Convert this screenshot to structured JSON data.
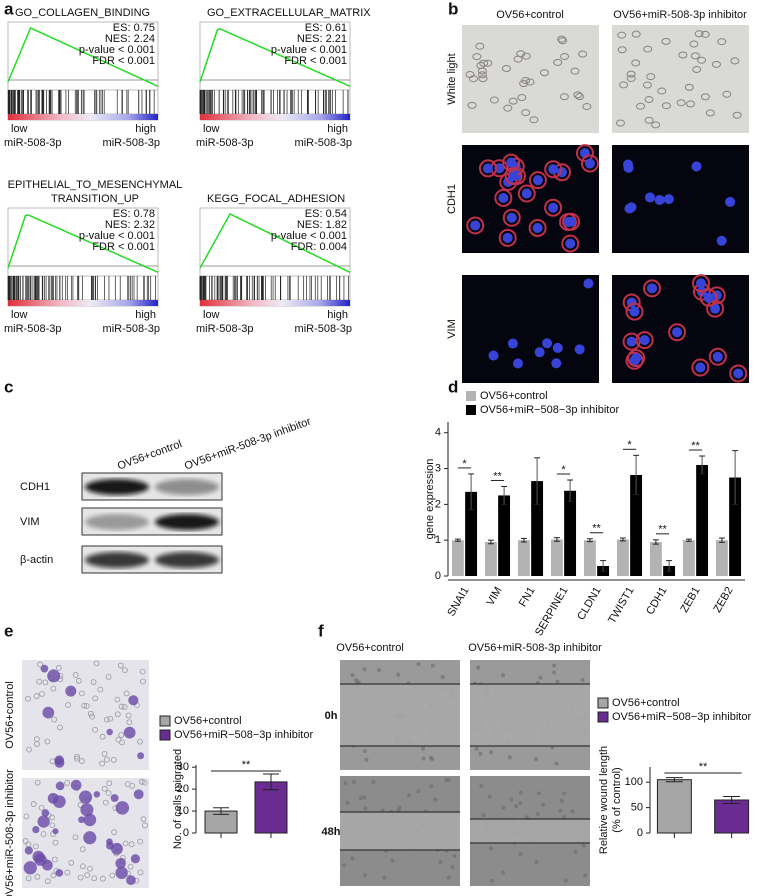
{
  "panels": {
    "a": {
      "label": "a",
      "plots": [
        {
          "title": [
            "GO_COLLAGEN_BINDING"
          ],
          "stats": [
            "ES: 0.75",
            "NES: 2.24",
            "p-value < 0.001",
            "FDR < 0.001"
          ],
          "low": "low",
          "high": "high",
          "group_left": "miR-508-3p",
          "group_right": "miR-508-3p"
        },
        {
          "title": [
            "GO_EXTRACELLULAR_MATRIX"
          ],
          "stats": [
            "ES: 0.61",
            "NES: 2.21",
            "p-value < 0.001",
            "FDR < 0.001"
          ],
          "low": "low",
          "high": "high",
          "group_left": "miR-508-3p",
          "group_right": "miR-508-3p"
        },
        {
          "title": [
            "EPITHELIAL_TO_MESENCHYMAL",
            "TRANSITION_UP"
          ],
          "stats": [
            "ES: 0.78",
            "NES: 2.32",
            "p-value < 0.001",
            "FDR < 0.001"
          ],
          "low": "low",
          "high": "high",
          "group_left": "miR-508-3p",
          "group_right": "miR-508-3p"
        },
        {
          "title": [
            "KEGG_FOCAL_ADHESION"
          ],
          "stats": [
            "ES: 0.54",
            "NES: 1.82",
            "p-value < 0.001",
            "FDR: 0.004"
          ],
          "low": "low",
          "high": "high",
          "group_left": "miR-508-3p",
          "group_right": "miR-508-3p"
        }
      ]
    },
    "b": {
      "label": "b",
      "columns": [
        "OV56+control",
        "OV56+miR-508-3p inhibitor"
      ],
      "rows": [
        "White light",
        "CDH1",
        "VIM"
      ]
    },
    "c": {
      "label": "c",
      "columns": [
        "OV56+control",
        "OV56+miR-508-3p inhibitor"
      ],
      "rows": [
        "CDH1",
        "VIM",
        "β-actin"
      ]
    },
    "d": {
      "label": "d"
    },
    "e": {
      "label": "e",
      "rows": [
        "OV56+control",
        "OV56+miR-508-3p inhibitor"
      ]
    },
    "f": {
      "label": "f",
      "columns": [
        "OV56+control",
        "OV56+miR-508-3p inhibitor"
      ],
      "rows": [
        "0h",
        "48h"
      ]
    }
  },
  "chart_data": [
    {
      "type": "bar",
      "ylabel": "gene expression",
      "categories": [
        "SNAI1",
        "VIM",
        "FN1",
        "SERPINE1",
        "CLDN1",
        "TWIST1",
        "CDH1",
        "ZEB1",
        "ZEB2"
      ],
      "series": [
        {
          "name": "OV56+control",
          "color": "#b3b3b3",
          "values": [
            1,
            0.95,
            1,
            1.02,
            1,
            1.02,
            0.95,
            1,
            1
          ],
          "errors": [
            0.03,
            0.05,
            0.05,
            0.05,
            0.04,
            0.04,
            0.06,
            0.03,
            0.06
          ]
        },
        {
          "name": "OV56+miR−508−3p inhibitor",
          "color": "#000000",
          "values": [
            2.35,
            2.25,
            2.65,
            2.38,
            0.28,
            2.82,
            0.28,
            3.1,
            2.75
          ],
          "errors": [
            0.5,
            0.25,
            0.65,
            0.3,
            0.15,
            0.55,
            0.15,
            0.25,
            0.75
          ]
        }
      ],
      "significance": [
        "*",
        "**",
        null,
        "*",
        "**",
        "*",
        "**",
        "**",
        null
      ],
      "ylim": [
        0,
        4.3
      ],
      "yticks": [
        0,
        1,
        2,
        3,
        4
      ]
    },
    {
      "type": "bar",
      "ylabel": [
        "No. of cells migrated"
      ],
      "categories": [
        null
      ],
      "series": [
        {
          "name": "OV56+control",
          "color": "#a6a6a6",
          "values": [
            10
          ],
          "errors": [
            1.5
          ]
        },
        {
          "name": "OV56+miR−508−3p inhibitor",
          "color": "#6a2c91",
          "values": [
            23.3
          ],
          "errors": [
            3.6
          ]
        }
      ],
      "significance": "**",
      "ylim": [
        0,
        31
      ],
      "yticks": [
        0,
        10,
        20,
        30
      ]
    },
    {
      "type": "bar",
      "ylabel": [
        "Relative wound length",
        "(% of control)"
      ],
      "categories": [
        null
      ],
      "series": [
        {
          "name": "OV56+control",
          "color": "#a6a6a6",
          "values": [
            105
          ],
          "errors": [
            4
          ]
        },
        {
          "name": "OV56+miR−508−3p inhibitor",
          "color": "#6a2c91",
          "values": [
            65
          ],
          "errors": [
            7
          ]
        }
      ],
      "significance": "**",
      "ylim": [
        0,
        130
      ],
      "yticks": [
        0,
        50,
        100
      ]
    }
  ]
}
